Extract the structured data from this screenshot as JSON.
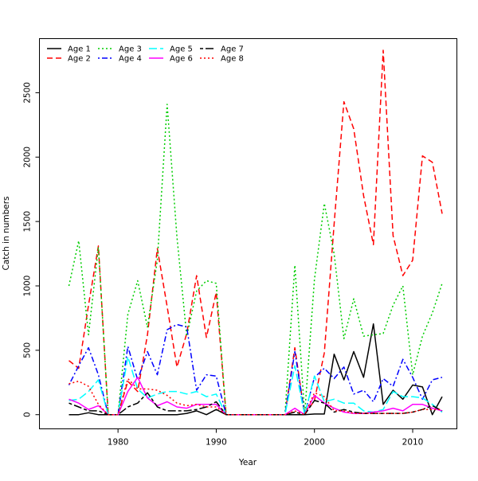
{
  "chart_data": {
    "type": "line",
    "title": "",
    "xlabel": "Year",
    "ylabel": "Catch in numbers",
    "xlim": [
      1972,
      2014.5
    ],
    "ylim": [
      -110,
      2920
    ],
    "x_ticks": [
      1980,
      1990,
      2000,
      2010
    ],
    "y_ticks": [
      0,
      500,
      1000,
      1500,
      2000,
      2500
    ],
    "x_tick_labels": [
      "1980",
      "1990",
      "2000",
      "2010"
    ],
    "y_tick_labels": [
      "0",
      "500",
      "1000",
      "1500",
      "2000",
      "2500"
    ],
    "legend_position": "top-left",
    "x": [
      1975,
      1976,
      1977,
      1978,
      1979,
      1980,
      1981,
      1982,
      1983,
      1984,
      1985,
      1986,
      1987,
      1988,
      1989,
      1990,
      1991,
      1992,
      1993,
      1994,
      1995,
      1996,
      1997,
      1998,
      1999,
      2000,
      2001,
      2002,
      2003,
      2004,
      2005,
      2006,
      2007,
      2008,
      2009,
      2010,
      2011,
      2012,
      2013
    ],
    "series": [
      {
        "name": "Age 1",
        "color": "#000000",
        "dash": "solid",
        "values": [
          0,
          0,
          15,
          0,
          0,
          0,
          0,
          0,
          0,
          0,
          0,
          0,
          10,
          30,
          0,
          40,
          0,
          0,
          0,
          0,
          0,
          0,
          0,
          0,
          0,
          5,
          5,
          470,
          270,
          490,
          290,
          705,
          80,
          190,
          120,
          230,
          215,
          0,
          140
        ]
      },
      {
        "name": "Age 2",
        "color": "#ff0000",
        "dash": "dashed",
        "values": [
          420,
          360,
          850,
          1310,
          0,
          0,
          260,
          180,
          620,
          1290,
          840,
          370,
          630,
          1080,
          600,
          950,
          0,
          0,
          0,
          0,
          0,
          0,
          0,
          520,
          0,
          110,
          480,
          1480,
          2430,
          2220,
          1700,
          1320,
          2830,
          1390,
          1080,
          1200,
          2010,
          1960,
          1560
        ]
      },
      {
        "name": "Age 3",
        "color": "#00cd00",
        "dash": "dotted",
        "values": [
          1000,
          1350,
          620,
          1300,
          0,
          0,
          780,
          1040,
          680,
          1200,
          2410,
          1380,
          610,
          960,
          1040,
          1020,
          0,
          0,
          0,
          0,
          0,
          0,
          0,
          1160,
          0,
          1050,
          1640,
          1250,
          590,
          900,
          610,
          620,
          630,
          850,
          1000,
          310,
          610,
          790,
          1020
        ]
      },
      {
        "name": "Age 4",
        "color": "#0000ff",
        "dash": "dotdash",
        "values": [
          230,
          380,
          520,
          310,
          0,
          0,
          530,
          270,
          490,
          310,
          660,
          700,
          680,
          190,
          310,
          300,
          0,
          0,
          0,
          0,
          0,
          0,
          0,
          490,
          0,
          290,
          360,
          280,
          370,
          160,
          190,
          100,
          280,
          220,
          430,
          290,
          120,
          270,
          290
        ]
      },
      {
        "name": "Age 5",
        "color": "#00ffff",
        "dash": "longdash",
        "values": [
          110,
          120,
          180,
          270,
          0,
          0,
          450,
          200,
          130,
          160,
          180,
          180,
          160,
          180,
          140,
          160,
          0,
          0,
          0,
          0,
          0,
          0,
          0,
          380,
          0,
          300,
          100,
          120,
          90,
          90,
          30,
          20,
          40,
          180,
          140,
          140,
          130,
          80,
          20
        ]
      },
      {
        "name": "Age 6",
        "color": "#ff00ff",
        "dash": "solid",
        "values": [
          120,
          90,
          40,
          70,
          0,
          0,
          180,
          290,
          130,
          70,
          100,
          60,
          50,
          80,
          80,
          80,
          0,
          0,
          0,
          0,
          0,
          0,
          0,
          50,
          0,
          150,
          90,
          50,
          20,
          10,
          10,
          20,
          30,
          50,
          30,
          80,
          80,
          50,
          30
        ]
      },
      {
        "name": "Age 7",
        "color": "#000000",
        "dash": "twodash",
        "values": [
          90,
          60,
          30,
          30,
          0,
          0,
          60,
          90,
          170,
          60,
          30,
          30,
          30,
          40,
          60,
          100,
          0,
          0,
          0,
          0,
          0,
          0,
          0,
          20,
          0,
          110,
          90,
          20,
          40,
          20,
          10,
          10,
          10,
          10,
          10,
          20,
          40,
          70,
          30
        ]
      },
      {
        "name": "Age 8",
        "color": "#ff0000",
        "dash": "dotted",
        "values": [
          240,
          260,
          220,
          80,
          0,
          0,
          280,
          200,
          200,
          190,
          150,
          90,
          70,
          80,
          60,
          60,
          0,
          0,
          0,
          0,
          0,
          0,
          0,
          30,
          0,
          170,
          140,
          30,
          30,
          10,
          10,
          10,
          10,
          10,
          10,
          20,
          40,
          40,
          40
        ]
      }
    ]
  }
}
